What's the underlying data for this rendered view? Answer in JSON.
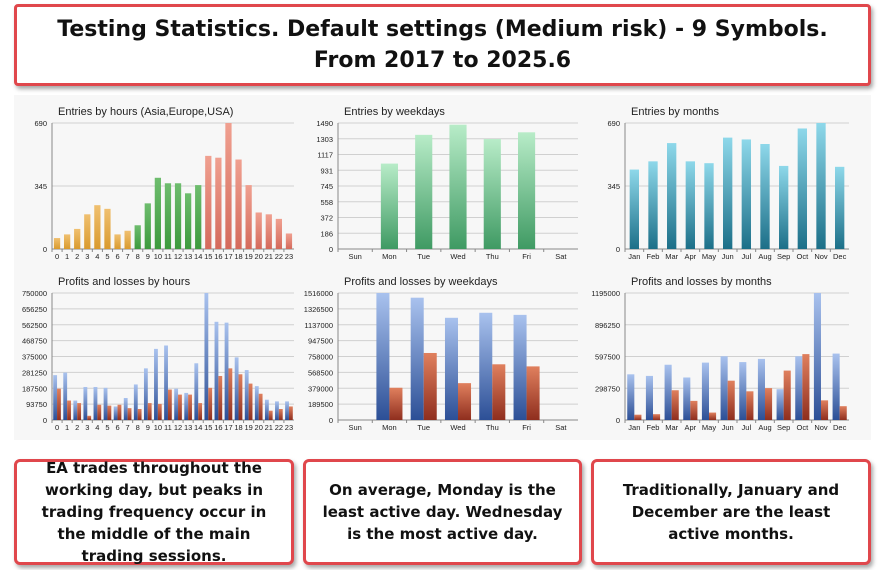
{
  "header": {
    "line1": "Testing Statistics. Default settings (Medium risk) - 9 Symbols.",
    "line2": "From 2017 to 2025.6"
  },
  "notes": [
    "EA trades throughout the working day, but peaks in trading frequency occur in the middle of the main trading sessions.",
    "On average, Monday is the least active day. Wednesday is the most active day.",
    "Traditionally, January and December are the least active months."
  ],
  "colors": {
    "orange": "#d99a2e",
    "green": "#3d9a3d",
    "red": "#d46a5c",
    "mint": "#7ccf9c",
    "teal": "#2f9fb8",
    "blue": "#4f78c4",
    "brown": "#b8452f",
    "grid": "#d0d0d0"
  },
  "chart_data": [
    {
      "type": "bar",
      "title": "Entries by hours (Asia,Europe,USA)",
      "categories": [
        "0",
        "1",
        "2",
        "3",
        "4",
        "5",
        "6",
        "7",
        "8",
        "9",
        "10",
        "11",
        "12",
        "13",
        "14",
        "15",
        "16",
        "17",
        "18",
        "19",
        "20",
        "21",
        "22",
        "23"
      ],
      "values": [
        60,
        80,
        110,
        190,
        240,
        220,
        80,
        100,
        130,
        250,
        390,
        360,
        360,
        305,
        350,
        510,
        500,
        690,
        490,
        350,
        200,
        190,
        165,
        85
      ],
      "yticks": [
        "690",
        "345",
        "0"
      ],
      "ylim": [
        0,
        690
      ]
    },
    {
      "type": "bar",
      "title": "Entries by weekdays",
      "categories": [
        "Sun",
        "Mon",
        "Tue",
        "Wed",
        "Thu",
        "Fri",
        "Sat"
      ],
      "values": [
        0,
        1010,
        1350,
        1470,
        1300,
        1380,
        0
      ],
      "yticks": [
        "1490",
        "1303",
        "1117",
        "931",
        "745",
        "558",
        "372",
        "186",
        "0"
      ],
      "ylim": [
        0,
        1490
      ]
    },
    {
      "type": "bar",
      "title": "Entries by months",
      "categories": [
        "Jan",
        "Feb",
        "Mar",
        "Apr",
        "May",
        "Jun",
        "Jul",
        "Aug",
        "Sep",
        "Oct",
        "Nov",
        "Dec"
      ],
      "values": [
        435,
        480,
        580,
        480,
        470,
        610,
        600,
        575,
        455,
        660,
        690,
        450
      ],
      "yticks": [
        "690",
        "345",
        "0"
      ],
      "ylim": [
        0,
        690
      ]
    },
    {
      "type": "bar",
      "title": "Profits and losses by hours",
      "categories": [
        "0",
        "1",
        "2",
        "3",
        "4",
        "5",
        "6",
        "7",
        "8",
        "9",
        "10",
        "11",
        "12",
        "13",
        "14",
        "15",
        "16",
        "17",
        "18",
        "19",
        "20",
        "21",
        "22",
        "23"
      ],
      "series": [
        {
          "values": [
            265000,
            280000,
            115000,
            195000,
            195000,
            190000,
            80000,
            130000,
            210000,
            305000,
            420000,
            440000,
            185000,
            160000,
            335000,
            750000,
            580000,
            575000,
            370000,
            295000,
            200000,
            120000,
            110000,
            110000
          ]
        },
        {
          "values": [
            185000,
            115000,
            100000,
            25000,
            90000,
            85000,
            90000,
            70000,
            65000,
            100000,
            95000,
            180000,
            150000,
            150000,
            100000,
            190000,
            260000,
            305000,
            270000,
            215000,
            155000,
            55000,
            65000,
            80000
          ]
        }
      ],
      "yticks": [
        "750000",
        "656250",
        "562500",
        "468750",
        "375000",
        "281250",
        "187500",
        "93750",
        "0"
      ],
      "ylim": [
        0,
        750000
      ]
    },
    {
      "type": "bar",
      "title": "Profits and losses by weekdays",
      "categories": [
        "Sun",
        "Mon",
        "Tue",
        "Wed",
        "Thu",
        "Fri",
        "Sat"
      ],
      "series": [
        {
          "values": [
            0,
            1516000,
            1460000,
            1220000,
            1280000,
            1255000,
            0
          ]
        },
        {
          "values": [
            0,
            385000,
            800000,
            440000,
            665000,
            640000,
            0
          ]
        }
      ],
      "yticks": [
        "1516000",
        "1326500",
        "1137000",
        "947500",
        "758000",
        "568500",
        "379000",
        "189500",
        "0"
      ],
      "ylim": [
        0,
        1516000
      ]
    },
    {
      "type": "bar",
      "title": "Profits and losses by months",
      "categories": [
        "Jan",
        "Feb",
        "Mar",
        "Apr",
        "May",
        "Jun",
        "Jul",
        "Aug",
        "Sep",
        "Oct",
        "Nov",
        "Dec"
      ],
      "series": [
        {
          "values": [
            430000,
            415000,
            520000,
            400000,
            540000,
            600000,
            545000,
            575000,
            290000,
            600000,
            1195000,
            625000
          ]
        },
        {
          "values": [
            50000,
            55000,
            280000,
            180000,
            70000,
            370000,
            270000,
            300000,
            465000,
            620000,
            185000,
            130000
          ]
        }
      ],
      "yticks": [
        "1195000",
        "896250",
        "597500",
        "298750",
        "0"
      ],
      "ylim": [
        0,
        1195000
      ]
    }
  ]
}
